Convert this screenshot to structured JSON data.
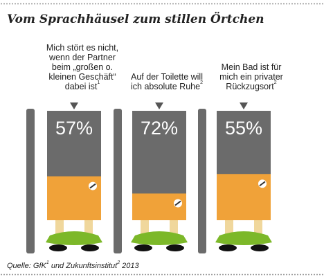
{
  "header": {
    "title": "Vom Sprachhäusel zum stillen Örtchen"
  },
  "chart_data": {
    "type": "bar",
    "unit": "%",
    "categories": [
      {
        "lines": [
          "Mich stört es nicht,",
          "wenn der Partner",
          "beim „großen o.",
          "kleinen Geschäft“",
          "dabei ist"
        ],
        "footnote": "1",
        "value": 57,
        "label": "57%"
      },
      {
        "lines": [
          "Auf der Toilette will",
          "ich absolute Ruhe"
        ],
        "footnote": "2",
        "value": 72,
        "label": "72%"
      },
      {
        "lines": [
          "Mein Bad ist  für",
          "mich ein privater",
          "Rückzugsort"
        ],
        "footnote": "2",
        "value": 55,
        "label": "55%"
      }
    ],
    "ylim": [
      0,
      100
    ],
    "colors": {
      "door_fill": "#f0a239",
      "bar_fill": "#6b6b6b",
      "frame": "#6b6b6b",
      "label_text": "#ffffff",
      "pants": "#7cb829",
      "legs": "#f0d79c",
      "shoes": "#111111"
    }
  },
  "footer": {
    "source_prefix": "Quelle: GfK",
    "source_sup1": "1",
    "source_middle": " und Zukunftsinstitut",
    "source_sup2": "2",
    "source_suffix": " 2013"
  }
}
